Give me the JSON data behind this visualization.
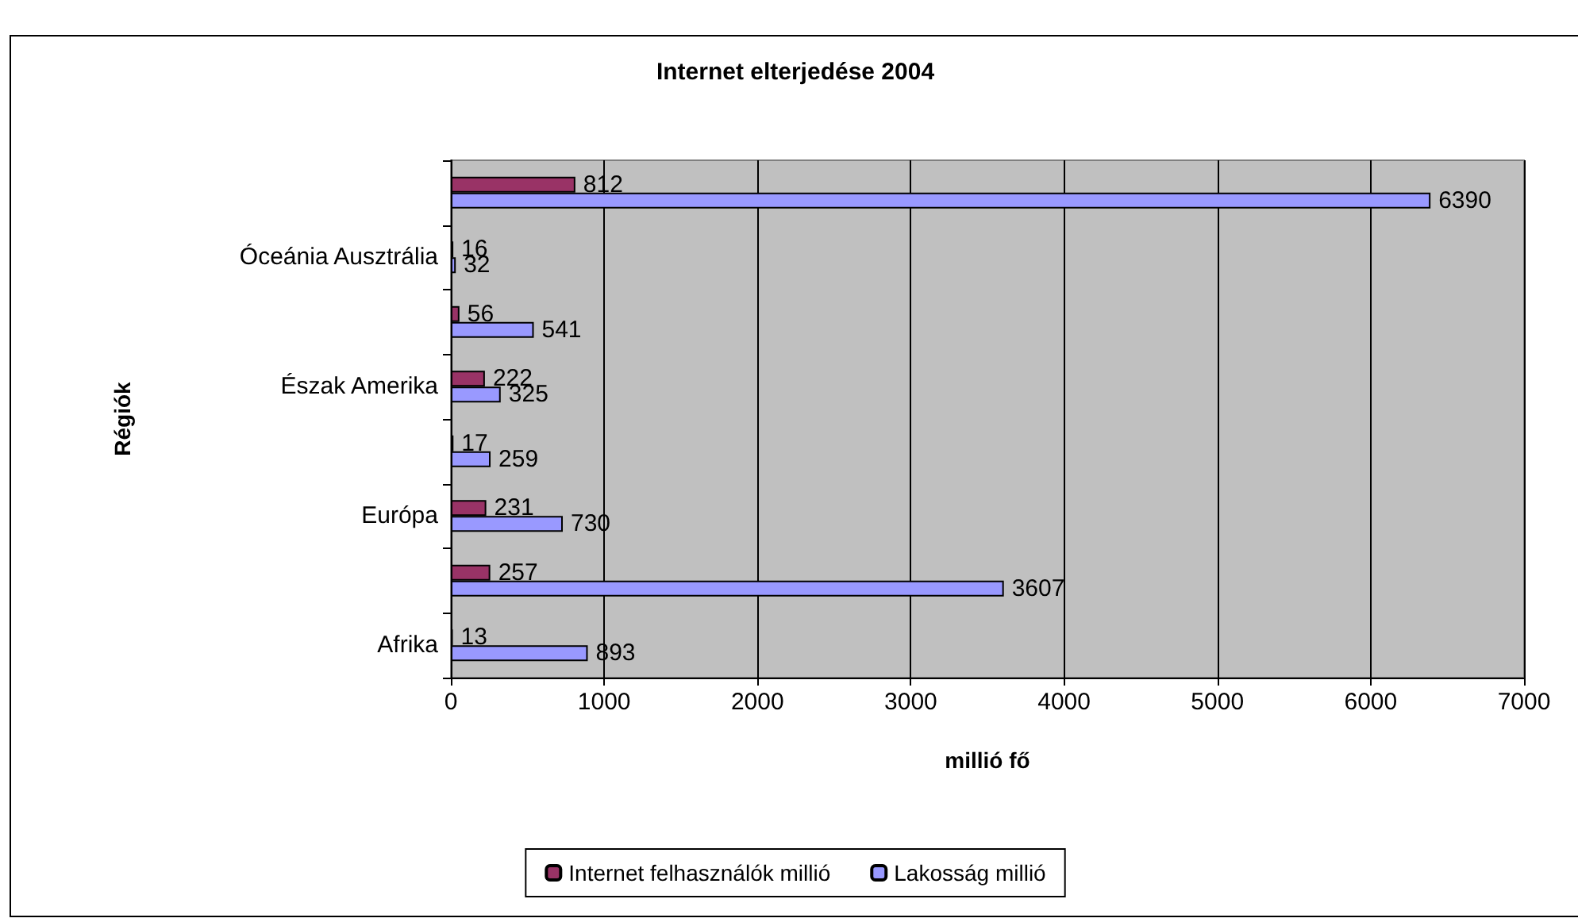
{
  "chart_data": {
    "type": "bar",
    "orientation": "horizontal",
    "title": "Internet elterjedése 2004",
    "xlabel": "millió fő",
    "ylabel": "Régiók",
    "categories": [
      null,
      "Óceánia Ausztrália",
      null,
      "Észak Amerika",
      null,
      "Európa",
      null,
      "Afrika"
    ],
    "series": [
      {
        "name": "Internet felhasználók millió",
        "color": "#993366",
        "values": [
          812,
          16,
          56,
          222,
          17,
          231,
          257,
          13
        ]
      },
      {
        "name": "Lakosság millió",
        "color": "#9999ff",
        "values": [
          6390,
          32,
          541,
          325,
          259,
          730,
          3607,
          893
        ]
      }
    ],
    "xlim": [
      0,
      7000
    ],
    "xticks": [
      0,
      1000,
      2000,
      3000,
      4000,
      5000,
      6000,
      7000
    ],
    "grid": "x",
    "legend": "bottom",
    "data_labels": true
  }
}
